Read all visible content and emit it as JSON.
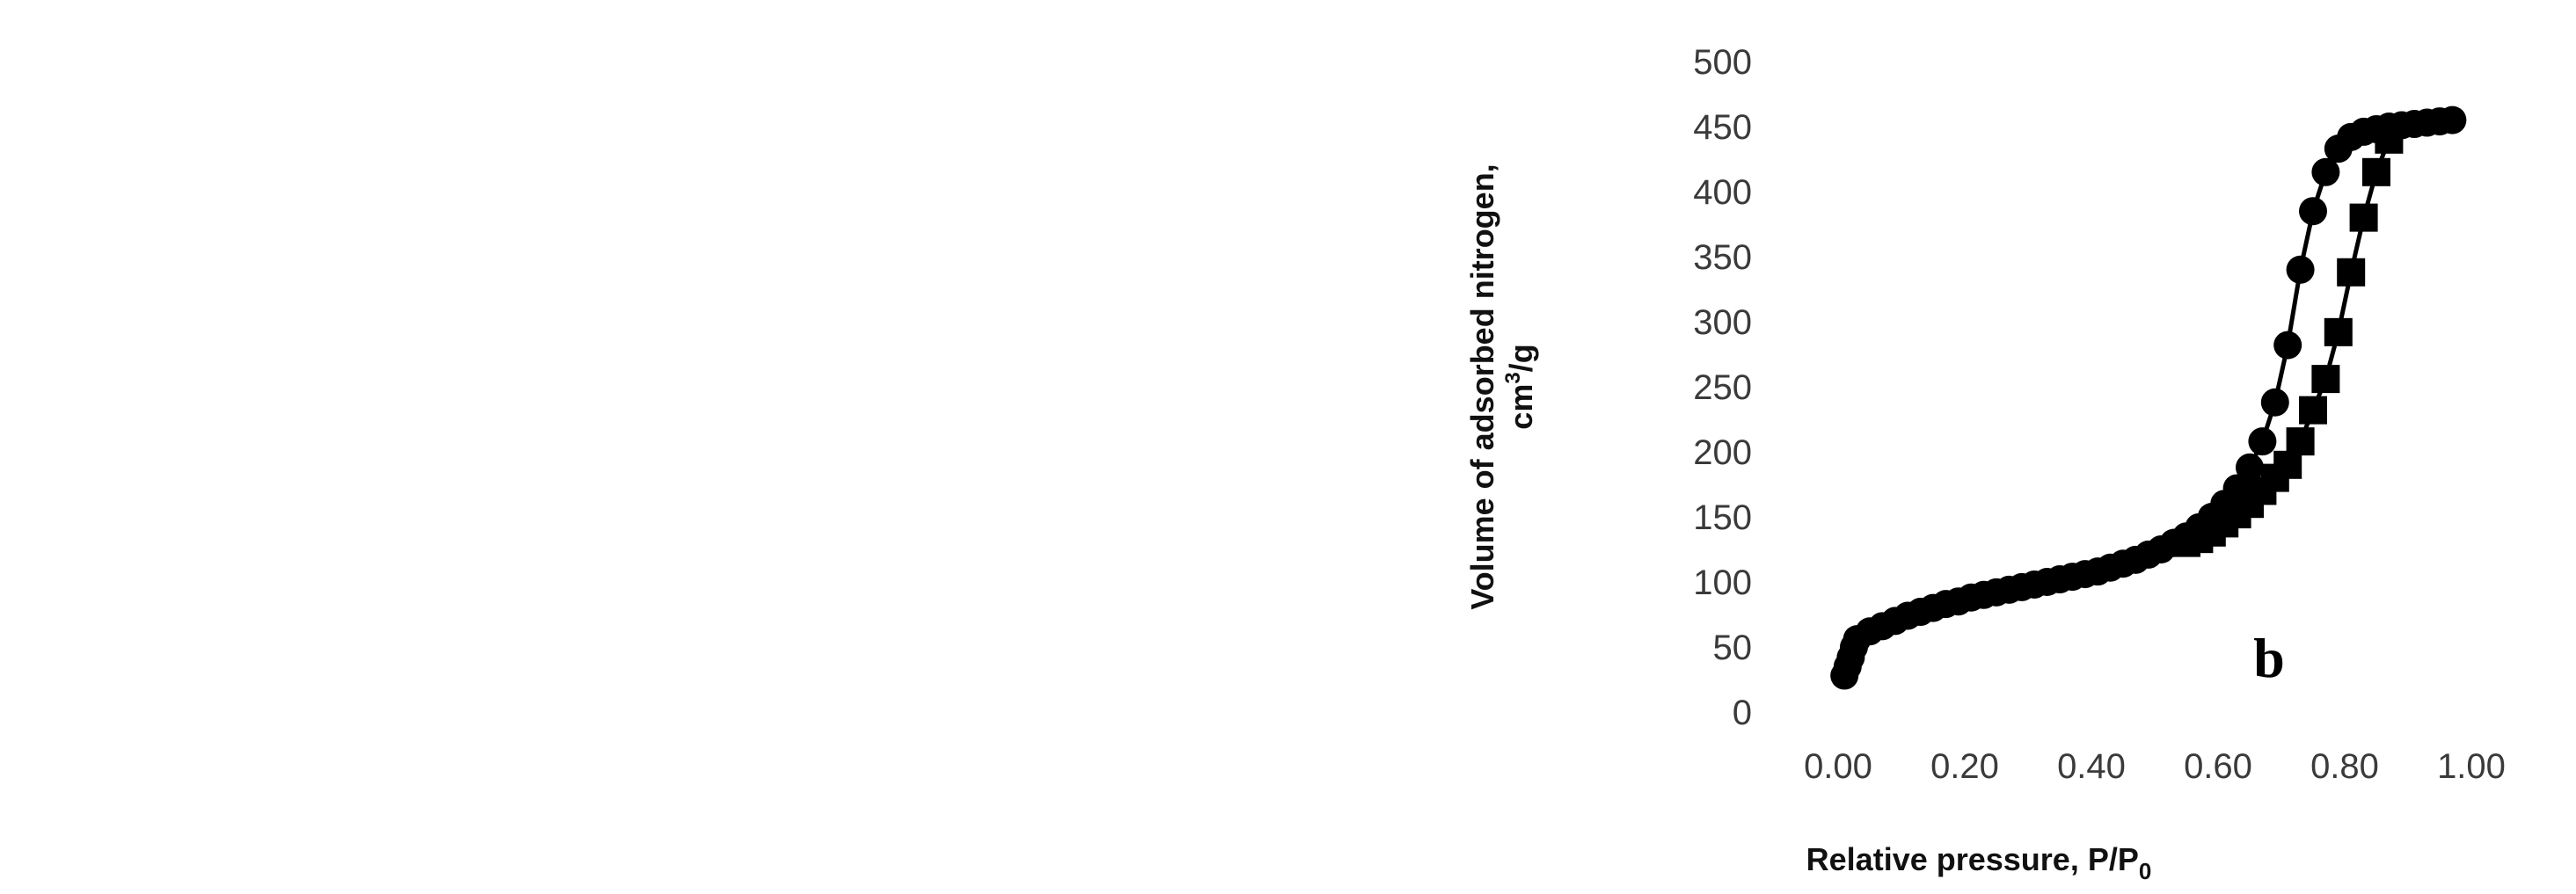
{
  "chart_data": [
    {
      "type": "scatter",
      "panel_label": "b",
      "xlabel_main": "Relative pressure, P/P",
      "xlabel_sub": "0",
      "ylabel_lines": [
        {
          "main": "Volume of adsorbed nitrogen,",
          "sup": "",
          "tail": ""
        },
        {
          "main": "cm",
          "sup": "3",
          "tail": "/g"
        }
      ],
      "xlim": [
        0,
        1
      ],
      "ylim": [
        0,
        500
      ],
      "xticks": [
        "0.00",
        "0.20",
        "0.40",
        "0.60",
        "0.80",
        "1.00"
      ],
      "yticks": [
        "0",
        "50",
        "100",
        "150",
        "200",
        "250",
        "300",
        "350",
        "400",
        "450",
        "500"
      ],
      "grid": false,
      "series": [
        {
          "marker": "circle",
          "x": [
            0.01,
            0.015,
            0.02,
            0.025,
            0.03,
            0.05,
            0.07,
            0.09,
            0.11,
            0.13,
            0.15,
            0.17,
            0.19,
            0.21,
            0.23,
            0.25,
            0.27,
            0.29,
            0.31,
            0.33,
            0.35,
            0.37,
            0.39,
            0.41,
            0.43,
            0.45,
            0.47,
            0.49,
            0.51,
            0.53,
            0.55,
            0.57,
            0.59,
            0.61,
            0.63,
            0.65,
            0.67,
            0.69,
            0.71,
            0.73,
            0.75,
            0.77,
            0.79,
            0.81,
            0.83,
            0.85,
            0.87,
            0.89,
            0.91,
            0.93,
            0.95,
            0.97
          ],
          "y": [
            28,
            35,
            42,
            50,
            56,
            62,
            66,
            70,
            74,
            77,
            80,
            83,
            85,
            88,
            90,
            92,
            94,
            96,
            98,
            100,
            102,
            104,
            106,
            108,
            111,
            114,
            117,
            121,
            125,
            130,
            135,
            142,
            150,
            160,
            172,
            188,
            208,
            238,
            282,
            340,
            385,
            415,
            433,
            442,
            446,
            448,
            450,
            451,
            452,
            453,
            454,
            455
          ]
        },
        {
          "marker": "square",
          "x": [
            0.55,
            0.57,
            0.59,
            0.61,
            0.63,
            0.65,
            0.67,
            0.69,
            0.71,
            0.73,
            0.75,
            0.77,
            0.79,
            0.81,
            0.83,
            0.85,
            0.87
          ],
          "y": [
            130,
            133,
            138,
            145,
            152,
            160,
            170,
            180,
            190,
            208,
            232,
            256,
            292,
            338,
            380,
            415,
            440
          ]
        }
      ]
    }
  ]
}
